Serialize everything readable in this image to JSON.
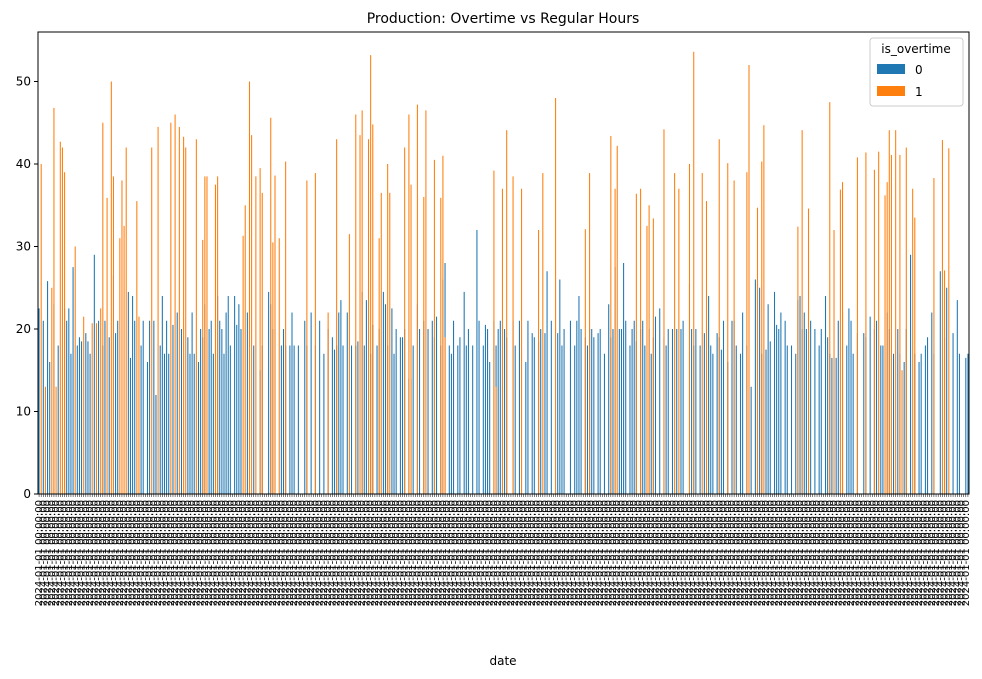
{
  "chart_data": {
    "type": "bar",
    "stacked": true,
    "title": "Production: Overtime vs Regular Hours",
    "xlabel": "date",
    "ylabel": "",
    "ylim": [
      0,
      56
    ],
    "yticks": [
      0,
      10,
      20,
      30,
      40,
      50
    ],
    "grid": false,
    "legend": {
      "title": "is_overtime",
      "placement": "top-right"
    },
    "x_tick_text": "2024-01-01 00:00:00",
    "series": [
      {
        "name": "0",
        "color": "#1f77b4",
        "values": [
          22.5,
          0,
          21,
          0,
          25.8,
          16,
          0,
          23,
          0,
          18,
          0,
          0,
          22.5,
          21,
          22.5,
          17,
          27.5,
          0,
          18,
          19,
          18.5,
          0,
          19.5,
          18.5,
          17,
          0,
          29,
          0,
          21,
          0,
          18,
          21,
          0,
          19,
          0,
          26.5,
          19.5,
          21,
          0,
          0,
          0,
          0,
          24.5,
          16.5,
          24,
          21,
          0,
          0,
          18,
          21,
          0,
          16,
          21,
          0,
          21,
          12,
          0,
          18,
          24,
          17,
          21,
          17,
          0,
          20.5,
          0,
          22,
          0,
          20,
          0,
          0,
          19,
          17,
          22,
          17,
          0,
          16,
          20,
          19,
          23,
          0,
          20,
          21,
          17,
          0,
          24,
          21,
          20,
          17,
          22,
          24,
          18,
          0,
          24,
          20.5,
          23,
          20,
          0,
          0,
          22,
          0,
          0,
          18,
          0,
          0,
          15,
          18,
          0,
          0,
          24.5,
          23,
          20,
          20,
          0,
          0,
          18,
          20,
          18,
          0,
          18,
          22,
          18,
          0,
          18,
          0,
          0,
          21,
          18,
          0,
          22,
          0,
          18,
          0,
          21,
          0,
          17,
          0,
          20,
          0,
          19,
          17.5,
          18,
          22,
          23.5,
          18,
          0,
          22,
          0,
          18,
          0,
          18,
          18.5,
          0,
          24.5,
          18,
          23.5,
          0,
          17,
          20.5,
          0,
          18,
          20,
          0,
          24.5,
          23,
          18,
          0,
          22.5,
          17,
          20,
          0,
          19,
          19,
          20,
          0,
          14,
          14,
          18,
          0,
          23,
          20,
          0,
          21,
          0,
          20,
          0,
          21,
          19,
          21.5,
          0,
          18,
          26,
          28,
          0,
          18,
          17,
          21,
          0,
          18,
          19,
          0,
          24.5,
          18,
          20,
          0,
          18,
          0,
          32,
          21,
          0,
          18,
          20.5,
          20,
          16,
          0,
          21,
          18,
          20,
          21,
          0,
          20,
          19,
          0,
          0,
          21,
          18,
          0,
          21,
          0,
          0,
          16,
          21,
          0,
          19.5,
          19,
          0,
          18.5,
          20,
          0,
          19.5,
          27,
          0,
          21,
          0,
          0,
          19.5,
          26,
          18,
          20,
          0,
          0,
          21,
          0,
          18,
          21,
          24,
          20,
          0,
          19,
          18,
          20,
          20,
          19,
          0,
          19.5,
          20,
          0,
          17,
          0,
          23,
          19,
          20,
          27.5,
          0,
          20,
          20,
          28,
          21,
          0,
          18,
          20,
          21,
          18.5,
          0,
          20,
          21,
          18,
          0,
          20,
          17,
          19,
          21.5,
          0,
          22.5,
          0,
          19,
          18,
          20,
          0,
          20,
          0,
          20,
          0,
          20,
          21,
          0,
          0,
          25.5,
          20,
          18,
          20,
          0,
          18,
          0,
          19.5,
          0,
          24,
          18,
          17,
          0,
          19.5,
          19,
          17.5,
          21,
          0,
          16,
          0,
          21,
          21,
          18,
          0,
          17,
          22,
          0,
          18,
          0,
          13,
          0,
          26,
          25.5,
          25,
          17,
          0,
          17.5,
          23,
          18.5,
          0,
          24.5,
          20.5,
          20,
          22,
          0,
          21,
          18,
          0,
          18,
          0,
          17,
          23.5,
          24,
          20,
          22,
          20,
          0,
          21,
          0,
          20,
          0,
          18,
          20,
          0,
          24,
          19,
          17,
          16.5,
          0,
          16.5,
          21,
          0,
          22,
          0,
          18,
          22.5,
          21,
          17,
          0,
          19.5,
          0,
          0,
          19.5,
          19,
          0,
          21.5,
          0,
          20,
          21,
          0,
          18,
          18,
          0,
          22,
          20,
          0,
          17,
          0,
          20,
          17,
          0,
          16,
          20,
          0,
          29,
          0,
          17,
          0,
          16,
          17,
          0,
          18,
          19,
          0,
          22,
          17,
          0,
          0,
          27,
          0,
          19,
          25,
          0,
          0,
          19.5,
          0,
          23.5,
          17,
          0,
          0,
          16.5,
          17
        ],
        "overtime_values": [
          0,
          40,
          0,
          13,
          0,
          0,
          25,
          46.8,
          13,
          0,
          42.7,
          42,
          39,
          0,
          0,
          0,
          0,
          30,
          0,
          0,
          0,
          21.5,
          0,
          0,
          0,
          20.7,
          0,
          20.7,
          0,
          22.5,
          45,
          0,
          35.9,
          0,
          50,
          38.5,
          0,
          0,
          31,
          38,
          32.5,
          42,
          0,
          0,
          0,
          0,
          35.5,
          21.5,
          0,
          0,
          0,
          0,
          0,
          42,
          0,
          0,
          44.5,
          0,
          0,
          0,
          0,
          0,
          45,
          0,
          46,
          0,
          44.5,
          0,
          43.3,
          42,
          0,
          0,
          0,
          0,
          43,
          0,
          0,
          30.8,
          38.5,
          38.5,
          0,
          0,
          0,
          37.5,
          38.5,
          0,
          0,
          0,
          0,
          0,
          0,
          0,
          0,
          0,
          0,
          0,
          31.3,
          35,
          0,
          50,
          43.5,
          0,
          38.5,
          0,
          39.5,
          36.5,
          0,
          0,
          0,
          45.6,
          30.5,
          38.6,
          0,
          31,
          0,
          0,
          40.3,
          0,
          0,
          0,
          0,
          0,
          0,
          0,
          0,
          0,
          38,
          0,
          0,
          0,
          38.9,
          0,
          0,
          0,
          0,
          0,
          22,
          0,
          0,
          0,
          43,
          0,
          0,
          0,
          0,
          0,
          31.5,
          0,
          0,
          46,
          0,
          43.5,
          46.5,
          0,
          0,
          43,
          53.2,
          44.8,
          0,
          0,
          31,
          36.5,
          0,
          0,
          40,
          36.5,
          0,
          0,
          0,
          0,
          0,
          0,
          42,
          0,
          46,
          37.5,
          0,
          0,
          47.2,
          0,
          0,
          36,
          46.5,
          0,
          0,
          0,
          40.5,
          0,
          0,
          35.9,
          41,
          19,
          0,
          0,
          0,
          0,
          0,
          0,
          0,
          0,
          0,
          0,
          0,
          0,
          0,
          0,
          0,
          0,
          0,
          0,
          0,
          0,
          0,
          0,
          39.2,
          13,
          0,
          0,
          37,
          0,
          44.1,
          0,
          0,
          38.5,
          0,
          0,
          0,
          37,
          0,
          0,
          0,
          0,
          0,
          0,
          0,
          32,
          0,
          38.9,
          0,
          0,
          0,
          0,
          0,
          48,
          0,
          0,
          0,
          0,
          0,
          0,
          0,
          0,
          0,
          0,
          0,
          0,
          0,
          32.1,
          0,
          38.9,
          0,
          0,
          0,
          0,
          0,
          0,
          0,
          0,
          0,
          43.4,
          0,
          37,
          42.2,
          0,
          0,
          0,
          0,
          0,
          0,
          0,
          0,
          36.4,
          0,
          37,
          0,
          0,
          32.5,
          35,
          0,
          33.4,
          0,
          0,
          0,
          0,
          44.2,
          0,
          0,
          0,
          0,
          38.9,
          0,
          37,
          0,
          0,
          0,
          0,
          40,
          0,
          53.6,
          0,
          0,
          0,
          38.9,
          0,
          35.5,
          0,
          0,
          0,
          0,
          0,
          43,
          0,
          0,
          0,
          40.1,
          0,
          0,
          38,
          0,
          0,
          0,
          0,
          0,
          39,
          52,
          0,
          0,
          0,
          34.7,
          0,
          40.3,
          44.7,
          0,
          0,
          0,
          0,
          0,
          0,
          0,
          0,
          0,
          0,
          0,
          0,
          0,
          0,
          0,
          32.4,
          0,
          44.1,
          0,
          0,
          34.6,
          0,
          0,
          0,
          0,
          0,
          0,
          0,
          0,
          0,
          47.5,
          0,
          32,
          0,
          0,
          36.9,
          37.8,
          0,
          0,
          0,
          0,
          0,
          0,
          40.8,
          0,
          0,
          0,
          41.4,
          0,
          0,
          0,
          39.3,
          0,
          41.5,
          0,
          0,
          36.2,
          37.8,
          44.1,
          41.1,
          0,
          44.1,
          0,
          41.1,
          15,
          0,
          42,
          0,
          0,
          37,
          33.5,
          0,
          0,
          0,
          0,
          0,
          0,
          0,
          0,
          38.3,
          0,
          0,
          0,
          42.9,
          27.1,
          0,
          41.9,
          0,
          0,
          0,
          0,
          0,
          0
        ]
      }
    ]
  }
}
